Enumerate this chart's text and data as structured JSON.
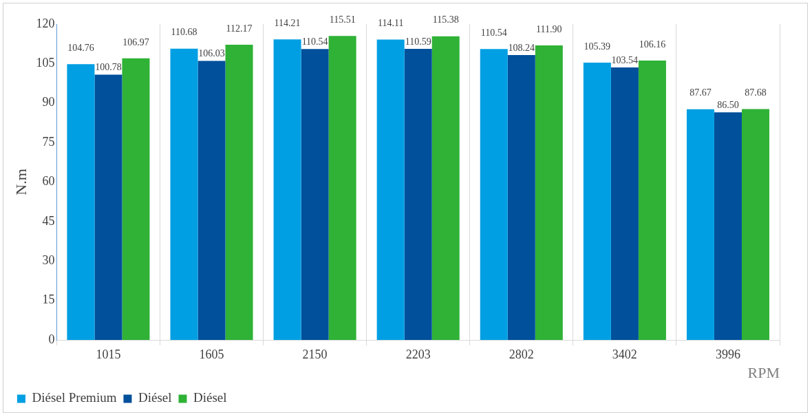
{
  "chart_data": {
    "type": "bar",
    "xlabel": "RPM",
    "ylabel": "N.m",
    "categories": [
      "1015",
      "1605",
      "2150",
      "2203",
      "2802",
      "3402",
      "3996"
    ],
    "series": [
      {
        "name": "Diésel Premium",
        "color": "#009fe3",
        "values": [
          104.76,
          110.68,
          114.21,
          114.11,
          110.54,
          105.39,
          87.67
        ],
        "value_labels": [
          "104.76",
          "110.68",
          "114.21",
          "114.11",
          "110.54",
          "105.39",
          "87.67"
        ]
      },
      {
        "name": "Diésel",
        "color": "#00509b",
        "values": [
          100.78,
          106.03,
          110.54,
          110.59,
          108.24,
          103.54,
          86.5
        ],
        "value_labels": [
          "100.78",
          "106.03",
          "110.54",
          "110.59",
          "108.24",
          "103.54",
          "86.50"
        ]
      },
      {
        "name": "Diésel",
        "color": "#2fb236",
        "values": [
          106.97,
          112.17,
          115.51,
          115.38,
          111.9,
          106.16,
          87.68
        ],
        "value_labels": [
          "106.97",
          "112.17",
          "115.51",
          "115.38",
          "111.90",
          "106.16",
          "87.68"
        ]
      }
    ],
    "ylim": [
      0,
      120
    ],
    "yticks": [
      0,
      15,
      30,
      45,
      60,
      75,
      90,
      105,
      120
    ],
    "grid": "x",
    "legend": "bottom left"
  }
}
